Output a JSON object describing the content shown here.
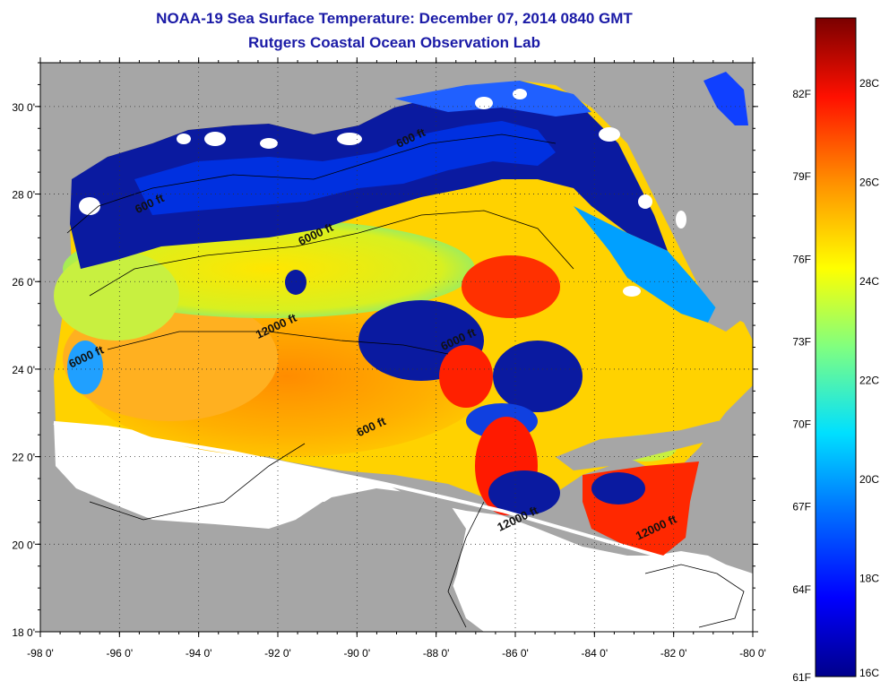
{
  "title": "NOAA-19 Sea Surface Temperature:  December 07, 2014 0840 GMT",
  "subtitle": "Rutgers Coastal Ocean Observation Lab",
  "axes": {
    "lat_labels": [
      "30 0'",
      "28 0'",
      "26 0'",
      "24 0'",
      "22 0'",
      "20 0'",
      "18 0'"
    ],
    "lat_values": [
      30,
      28,
      26,
      24,
      22,
      20,
      18
    ],
    "lon_labels": [
      "-98 0'",
      "-96 0'",
      "-94 0'",
      "-92 0'",
      "-90 0'",
      "-88 0'",
      "-86 0'",
      "-84 0'",
      "-82 0'",
      "-80 0'"
    ],
    "lon_values": [
      -98,
      -96,
      -94,
      -92,
      -90,
      -88,
      -86,
      -84,
      -82,
      -80
    ],
    "lat_range": [
      18,
      31
    ],
    "lon_range": [
      -98,
      -80
    ],
    "grid": true
  },
  "contour_labels": [
    {
      "text": "600 ft",
      "lon": -95.2,
      "lat": 27.7
    },
    {
      "text": "600 ft",
      "lon": -88.6,
      "lat": 29.2
    },
    {
      "text": "6000 ft",
      "lon": -91.0,
      "lat": 27.0
    },
    {
      "text": "12000 ft",
      "lon": -92.0,
      "lat": 24.9
    },
    {
      "text": "6000 ft",
      "lon": -96.8,
      "lat": 24.2
    },
    {
      "text": "6000 ft",
      "lon": -87.4,
      "lat": 24.6
    },
    {
      "text": "600 ft",
      "lon": -89.6,
      "lat": 22.6
    },
    {
      "text": "12000 ft",
      "lon": -85.9,
      "lat": 20.5
    },
    {
      "text": "12000 ft",
      "lon": -82.4,
      "lat": 20.3
    }
  ],
  "colorbar": {
    "min_c": 16,
    "max_c": 29.3,
    "celsius_labels": [
      "28C",
      "26C",
      "24C",
      "22C",
      "20C",
      "18C",
      "16C"
    ],
    "celsius_values": [
      28,
      26,
      24,
      22,
      20,
      18,
      16
    ],
    "fahrenheit_labels": [
      "82F",
      "79F",
      "76F",
      "73F",
      "70F",
      "67F",
      "64F",
      "61F"
    ],
    "fahrenheit_values": [
      82,
      79,
      76,
      73,
      70,
      67,
      64,
      61
    ],
    "stops": [
      "#00008b",
      "#0000ff",
      "#0080ff",
      "#00ffff",
      "#80ff80",
      "#ffff00",
      "#ff8000",
      "#ff0000",
      "#800000"
    ]
  },
  "colors": {
    "land": "#a6a6a6",
    "cloud": "#ffffff",
    "frame": "#000000"
  }
}
